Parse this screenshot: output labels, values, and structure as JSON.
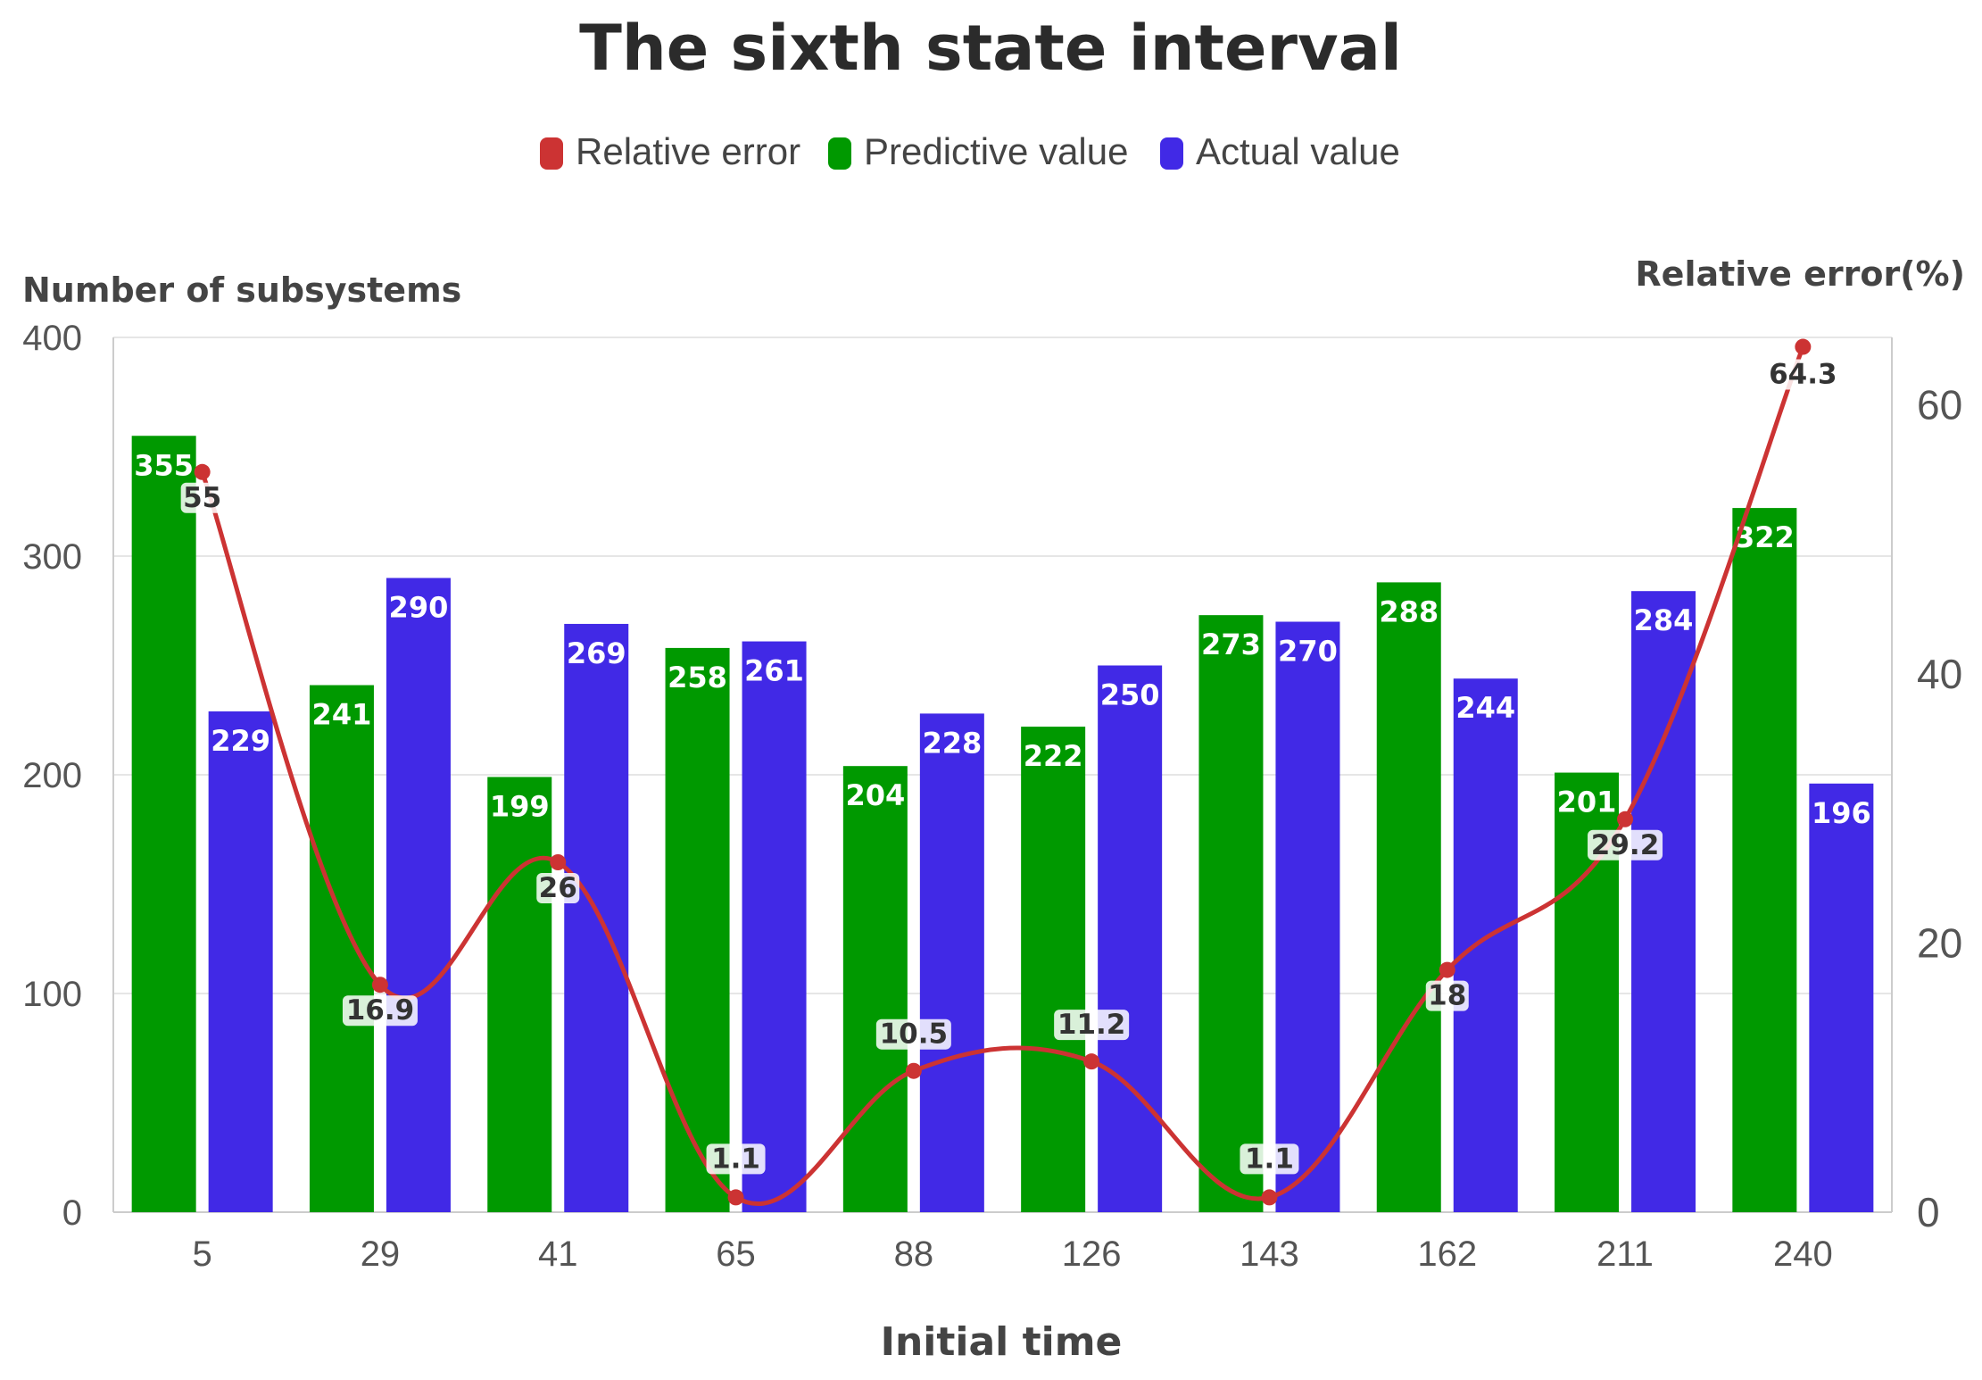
{
  "chart_data": {
    "type": "bar",
    "title": "The sixth state interval",
    "xlabel": "Initial time",
    "ylabel": "Number of subsystems",
    "y2label": "Relative error(%)",
    "ylim": [
      0,
      400
    ],
    "y2lim": [
      0,
      65
    ],
    "yticks": [
      0,
      100,
      200,
      300,
      400
    ],
    "y2ticks": [
      0,
      20,
      40,
      60
    ],
    "categories": [
      "5",
      "29",
      "41",
      "65",
      "88",
      "126",
      "143",
      "162",
      "211",
      "240"
    ],
    "series": [
      {
        "name": "Predictive value",
        "type": "bar",
        "color": "#009900",
        "values": [
          355,
          241,
          199,
          258,
          204,
          222,
          273,
          288,
          201,
          322
        ]
      },
      {
        "name": "Actual value",
        "type": "bar",
        "color": "#4129e6",
        "values": [
          229,
          290,
          269,
          261,
          228,
          250,
          270,
          244,
          284,
          196
        ]
      },
      {
        "name": "Relative error",
        "type": "line",
        "axis": "right",
        "color": "#cc3333",
        "values": [
          55,
          16.9,
          26,
          1.1,
          10.5,
          11.2,
          1.1,
          18,
          29.2,
          64.3
        ]
      }
    ],
    "legend": [
      "Relative error",
      "Predictive value",
      "Actual value"
    ],
    "legend_position": "top-center",
    "grid": true
  }
}
